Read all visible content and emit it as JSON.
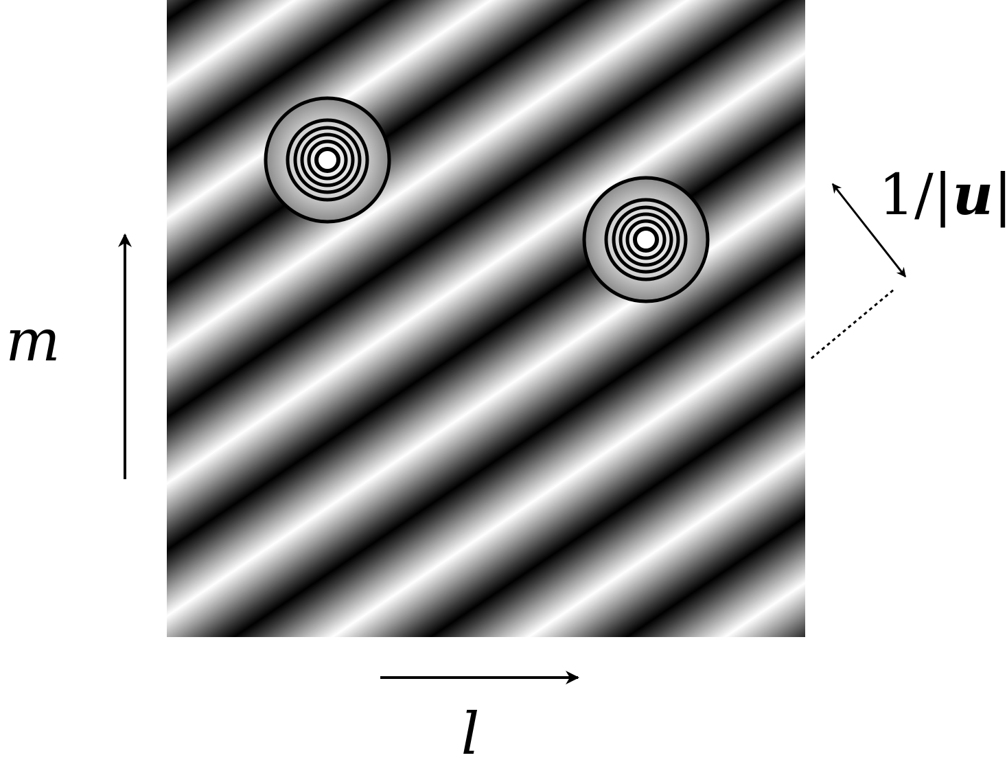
{
  "diagram": {
    "axes": {
      "horizontal_label": "l",
      "vertical_label": "m"
    },
    "fringe_period_label": {
      "prefix": "1/|",
      "vector": "u",
      "suffix": "|"
    },
    "sources": [
      {
        "name": "source-1",
        "rings": 5
      },
      {
        "name": "source-2",
        "rings": 5
      }
    ],
    "fringe_pattern": {
      "colors": [
        "#000000",
        "#ffffff"
      ]
    }
  }
}
